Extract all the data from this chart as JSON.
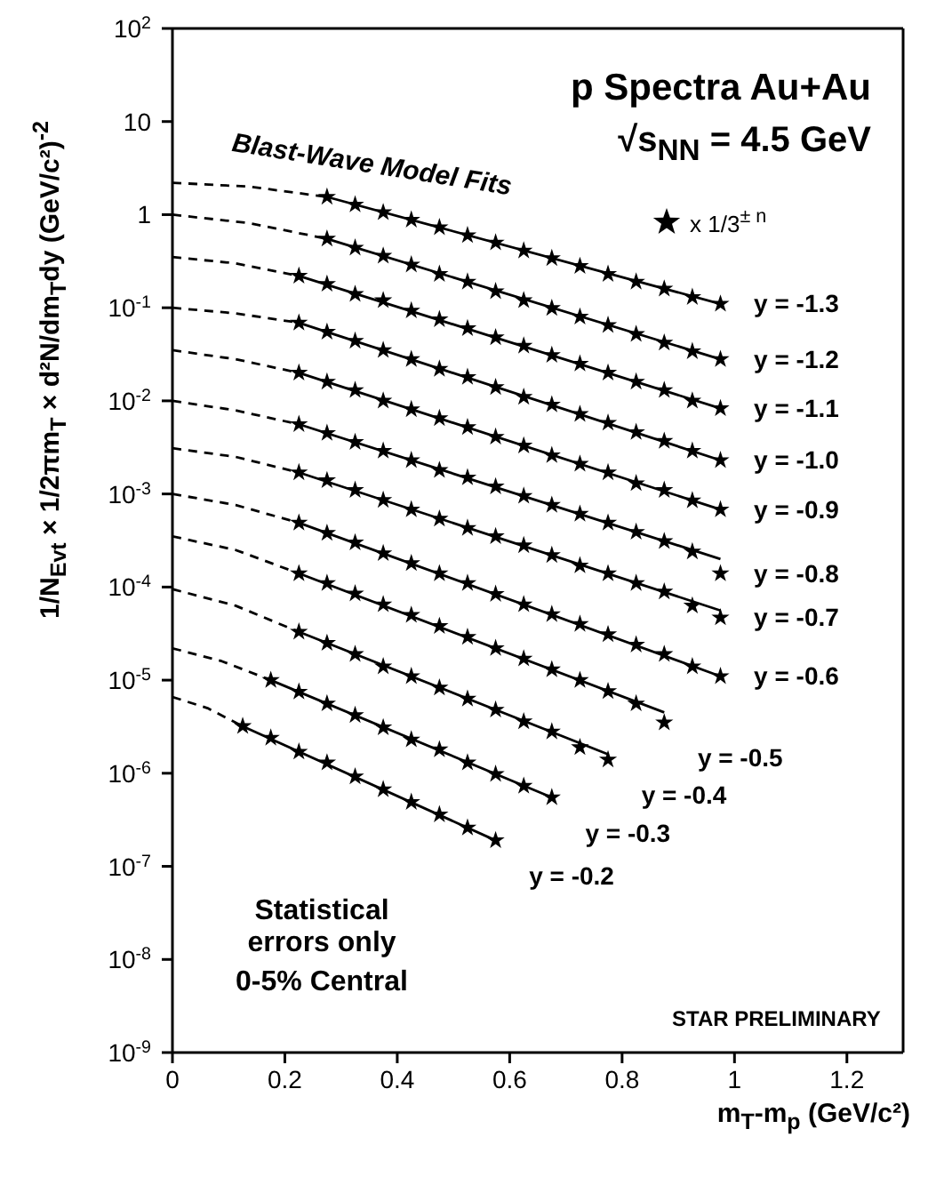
{
  "chart_data": {
    "type": "scatter",
    "title": "p Spectra Au+Au",
    "subtitle": "√s$_{NN}$ = 4.5 GeV",
    "xlabel": "m$_{T}$-m$_{p}$ (GeV/c²)",
    "ylabel": "1/N$_{Evt}$ × 1/2πm$_{T}$ × d²N/dm$_{T}$dy (GeV/c²)$^{-2}$",
    "annotations": [
      "Blast-Wave Model Fits",
      "x 1/3$^{± n}$",
      "Statistical errors only",
      "0-5% Central",
      "STAR PRELIMINARY"
    ],
    "log": "y",
    "xlim": [
      0,
      1.3
    ],
    "xticks": [
      0,
      0.2,
      0.4,
      0.6,
      0.8,
      1,
      1.2
    ],
    "ylim": [
      1e-09,
      100
    ],
    "yticks": [
      {
        "value": 1e-09,
        "label": "10$^{-9}$"
      },
      {
        "value": 1e-08,
        "label": "10$^{-8}$"
      },
      {
        "value": 1e-07,
        "label": "10$^{-7}$"
      },
      {
        "value": 1e-06,
        "label": "10$^{-6}$"
      },
      {
        "value": 1e-05,
        "label": "10$^{-5}$"
      },
      {
        "value": 0.0001,
        "label": "10$^{-4}$"
      },
      {
        "value": 0.001,
        "label": "10$^{-3}$"
      },
      {
        "value": 0.01,
        "label": "10$^{-2}$"
      },
      {
        "value": 0.1,
        "label": "10$^{-1}$"
      },
      1,
      10,
      {
        "value": 100,
        "label": "10$^{2}$"
      }
    ],
    "series": [
      {
        "type": "scatter",
        "marker": "star",
        "name": "y = -1.3",
        "color": "#000000",
        "x": [
          0.275,
          0.325,
          0.375,
          0.425,
          0.475,
          0.525,
          0.575,
          0.625,
          0.675,
          0.725,
          0.775,
          0.825,
          0.875,
          0.925,
          0.975
        ],
        "values": [
          1.55,
          1.28,
          1.06,
          0.88,
          0.73,
          0.6,
          0.5,
          0.41,
          0.34,
          0.28,
          0.23,
          0.19,
          0.16,
          0.13,
          0.11
        ]
      },
      {
        "type": "scatter",
        "marker": "star",
        "name": "y = -1.2",
        "color": "#000000",
        "x": [
          0.275,
          0.325,
          0.375,
          0.425,
          0.475,
          0.525,
          0.575,
          0.625,
          0.675,
          0.725,
          0.775,
          0.825,
          0.875,
          0.925,
          0.975
        ],
        "values": [
          0.55,
          0.44,
          0.36,
          0.29,
          0.23,
          0.19,
          0.15,
          0.12,
          0.099,
          0.08,
          0.065,
          0.052,
          0.042,
          0.034,
          0.028
        ]
      },
      {
        "type": "scatter",
        "marker": "star",
        "name": "y = -1.1",
        "color": "#000000",
        "x": [
          0.225,
          0.275,
          0.325,
          0.375,
          0.425,
          0.475,
          0.525,
          0.575,
          0.625,
          0.675,
          0.725,
          0.775,
          0.825,
          0.875,
          0.925,
          0.975
        ],
        "values": [
          0.22,
          0.18,
          0.14,
          0.12,
          0.093,
          0.075,
          0.06,
          0.048,
          0.039,
          0.031,
          0.025,
          0.02,
          0.016,
          0.013,
          0.01,
          0.0083
        ]
      },
      {
        "type": "scatter",
        "marker": "star",
        "name": "y = -1.0",
        "color": "#000000",
        "x": [
          0.225,
          0.275,
          0.325,
          0.375,
          0.425,
          0.475,
          0.525,
          0.575,
          0.625,
          0.675,
          0.725,
          0.775,
          0.825,
          0.875,
          0.925,
          0.975
        ],
        "values": [
          0.069,
          0.055,
          0.044,
          0.035,
          0.028,
          0.022,
          0.018,
          0.014,
          0.011,
          0.0091,
          0.0072,
          0.0058,
          0.0046,
          0.0037,
          0.0029,
          0.0023
        ]
      },
      {
        "type": "scatter",
        "marker": "star",
        "name": "y = -0.9",
        "color": "#000000",
        "x": [
          0.225,
          0.275,
          0.325,
          0.375,
          0.425,
          0.475,
          0.525,
          0.575,
          0.625,
          0.675,
          0.725,
          0.775,
          0.825,
          0.875,
          0.925,
          0.975
        ],
        "values": [
          0.02,
          0.016,
          0.013,
          0.01,
          0.0081,
          0.0065,
          0.0052,
          0.0041,
          0.0033,
          0.0026,
          0.0021,
          0.0017,
          0.0013,
          0.0011,
          0.00085,
          0.00068
        ]
      },
      {
        "type": "scatter",
        "marker": "star",
        "name": "y = -0.8",
        "color": "#000000",
        "x": [
          0.225,
          0.275,
          0.325,
          0.375,
          0.425,
          0.475,
          0.525,
          0.575,
          0.625,
          0.675,
          0.725,
          0.775,
          0.825,
          0.875,
          0.925,
          0.975
        ],
        "values": [
          0.0056,
          0.0045,
          0.0036,
          0.0029,
          0.0023,
          0.0018,
          0.0015,
          0.0012,
          0.00095,
          0.00076,
          0.00061,
          0.00049,
          0.00039,
          0.00031,
          0.00024,
          0.00014
        ]
      },
      {
        "type": "scatter",
        "marker": "star",
        "name": "y = -0.7",
        "color": "#000000",
        "x": [
          0.225,
          0.275,
          0.325,
          0.375,
          0.425,
          0.475,
          0.525,
          0.575,
          0.625,
          0.675,
          0.725,
          0.775,
          0.825,
          0.875,
          0.925,
          0.975
        ],
        "values": [
          0.0017,
          0.0014,
          0.0011,
          0.00086,
          0.00068,
          0.00054,
          0.00043,
          0.00035,
          0.00028,
          0.00022,
          0.00017,
          0.00014,
          0.00011,
          8.9e-05,
          6.3e-05,
          4.7e-05
        ]
      },
      {
        "type": "scatter",
        "marker": "star",
        "name": "y = -0.6",
        "color": "#000000",
        "x": [
          0.225,
          0.275,
          0.325,
          0.375,
          0.425,
          0.475,
          0.525,
          0.575,
          0.625,
          0.675,
          0.725,
          0.775,
          0.825,
          0.875,
          0.925,
          0.975
        ],
        "values": [
          0.00049,
          0.00038,
          0.0003,
          0.00023,
          0.00018,
          0.00014,
          0.00011,
          8.4e-05,
          6.5e-05,
          5.1e-05,
          4e-05,
          3.1e-05,
          2.4e-05,
          1.9e-05,
          1.4e-05,
          1.1e-05
        ]
      },
      {
        "type": "scatter",
        "marker": "star",
        "name": "y = -0.5",
        "color": "#000000",
        "x": [
          0.225,
          0.275,
          0.325,
          0.375,
          0.425,
          0.475,
          0.525,
          0.575,
          0.625,
          0.675,
          0.725,
          0.775,
          0.825,
          0.875
        ],
        "values": [
          0.00014,
          0.00011,
          8.5e-05,
          6.5e-05,
          5e-05,
          3.8e-05,
          2.9e-05,
          2.2e-05,
          1.7e-05,
          1.3e-05,
          1e-05,
          7.6e-06,
          5.6e-06,
          3.5e-06
        ]
      },
      {
        "type": "scatter",
        "marker": "star",
        "name": "y = -0.4",
        "color": "#000000",
        "x": [
          0.225,
          0.275,
          0.325,
          0.375,
          0.425,
          0.475,
          0.525,
          0.575,
          0.625,
          0.675,
          0.725,
          0.775
        ],
        "values": [
          3.3e-05,
          2.5e-05,
          1.9e-05,
          1.4e-05,
          1.1e-05,
          8.3e-06,
          6.3e-06,
          4.8e-06,
          3.6e-06,
          2.8e-06,
          1.9e-06,
          1.4e-06
        ]
      },
      {
        "type": "scatter",
        "marker": "star",
        "name": "y = -0.3",
        "color": "#000000",
        "x": [
          0.175,
          0.225,
          0.275,
          0.325,
          0.375,
          0.425,
          0.475,
          0.525,
          0.575,
          0.625,
          0.675
        ],
        "values": [
          1e-05,
          7.5e-06,
          5.6e-06,
          4.2e-06,
          3.1e-06,
          2.3e-06,
          1.8e-06,
          1.3e-06,
          9.8e-07,
          7.3e-07,
          5.5e-07
        ]
      },
      {
        "type": "scatter",
        "marker": "star",
        "name": "y = -0.2",
        "color": "#000000",
        "x": [
          0.125,
          0.175,
          0.225,
          0.275,
          0.325,
          0.375,
          0.425,
          0.475,
          0.525,
          0.575
        ],
        "values": [
          3.2e-06,
          2.4e-06,
          1.7e-06,
          1.3e-06,
          9.2e-07,
          6.7e-07,
          4.9e-07,
          3.6e-07,
          2.6e-07,
          1.9e-07
        ]
      },
      {
        "type": "line",
        "line_style": "solid",
        "color": "#000000",
        "x": [
          0.275,
          0.975
        ],
        "values": [
          1.55,
          0.11
        ]
      },
      {
        "type": "line",
        "line_style": "solid",
        "color": "#000000",
        "x": [
          0.275,
          0.975
        ],
        "values": [
          0.55,
          0.028
        ]
      },
      {
        "type": "line",
        "line_style": "solid",
        "color": "#000000",
        "x": [
          0.225,
          0.975
        ],
        "values": [
          0.22,
          0.0083
        ]
      },
      {
        "type": "line",
        "line_style": "solid",
        "color": "#000000",
        "x": [
          0.225,
          0.975
        ],
        "values": [
          0.069,
          0.0023
        ]
      },
      {
        "type": "line",
        "line_style": "solid",
        "color": "#000000",
        "x": [
          0.225,
          0.975
        ],
        "values": [
          0.02,
          0.00068
        ]
      },
      {
        "type": "line",
        "line_style": "solid",
        "color": "#000000",
        "x": [
          0.225,
          0.975
        ],
        "values": [
          0.0056,
          0.0002
        ]
      },
      {
        "type": "line",
        "line_style": "solid",
        "color": "#000000",
        "x": [
          0.225,
          0.975
        ],
        "values": [
          0.0017,
          5.6e-05
        ]
      },
      {
        "type": "line",
        "line_style": "solid",
        "color": "#000000",
        "x": [
          0.225,
          0.975
        ],
        "values": [
          0.00049,
          1.1e-05
        ]
      },
      {
        "type": "line",
        "line_style": "solid",
        "color": "#000000",
        "x": [
          0.225,
          0.875
        ],
        "values": [
          0.00014,
          4.5e-06
        ]
      },
      {
        "type": "line",
        "line_style": "solid",
        "color": "#000000",
        "x": [
          0.225,
          0.775
        ],
        "values": [
          3.3e-05,
          1.6e-06
        ]
      },
      {
        "type": "line",
        "line_style": "solid",
        "color": "#000000",
        "x": [
          0.175,
          0.675
        ],
        "values": [
          1e-05,
          5.5e-07
        ]
      },
      {
        "type": "line",
        "line_style": "solid",
        "color": "#000000",
        "x": [
          0.125,
          0.575
        ],
        "values": [
          3.2e-06,
          1.9e-07
        ]
      },
      {
        "type": "line",
        "line_style": "dashed",
        "color": "#000000",
        "x": [
          0,
          0.1375,
          0.275
        ],
        "values": [
          2.2,
          2.0,
          1.55
        ]
      },
      {
        "type": "line",
        "line_style": "dashed",
        "color": "#000000",
        "x": [
          0,
          0.1375,
          0.275
        ],
        "values": [
          1.0,
          0.81,
          0.55
        ]
      },
      {
        "type": "line",
        "line_style": "dashed",
        "color": "#000000",
        "x": [
          0,
          0.1125,
          0.225
        ],
        "values": [
          0.35,
          0.3,
          0.22
        ]
      },
      {
        "type": "line",
        "line_style": "dashed",
        "color": "#000000",
        "x": [
          0,
          0.1125,
          0.225
        ],
        "values": [
          0.1,
          0.087,
          0.069
        ]
      },
      {
        "type": "line",
        "line_style": "dashed",
        "color": "#000000",
        "x": [
          0,
          0.1125,
          0.225
        ],
        "values": [
          0.035,
          0.028,
          0.02
        ]
      },
      {
        "type": "line",
        "line_style": "dashed",
        "color": "#000000",
        "x": [
          0,
          0.1125,
          0.225
        ],
        "values": [
          0.01,
          0.0079,
          0.0056
        ]
      },
      {
        "type": "line",
        "line_style": "dashed",
        "color": "#000000",
        "x": [
          0,
          0.1125,
          0.225
        ],
        "values": [
          0.0031,
          0.0025,
          0.0017
        ]
      },
      {
        "type": "line",
        "line_style": "dashed",
        "color": "#000000",
        "x": [
          0,
          0.1125,
          0.225
        ],
        "values": [
          0.001,
          0.00076,
          0.00049
        ]
      },
      {
        "type": "line",
        "line_style": "dashed",
        "color": "#000000",
        "x": [
          0,
          0.1125,
          0.225
        ],
        "values": [
          0.00035,
          0.00025,
          0.00014
        ]
      },
      {
        "type": "line",
        "line_style": "dashed",
        "color": "#000000",
        "x": [
          0,
          0.1125,
          0.225
        ],
        "values": [
          9.5e-05,
          6.3e-05,
          3.3e-05
        ]
      },
      {
        "type": "line",
        "line_style": "dashed",
        "color": "#000000",
        "x": [
          0,
          0.0875,
          0.175
        ],
        "values": [
          2.2e-05,
          1.6e-05,
          1e-05
        ]
      },
      {
        "type": "line",
        "line_style": "dashed",
        "color": "#000000",
        "x": [
          0,
          0.0625,
          0.125
        ],
        "values": [
          6.6e-06,
          5e-06,
          3.2e-06
        ]
      }
    ]
  }
}
